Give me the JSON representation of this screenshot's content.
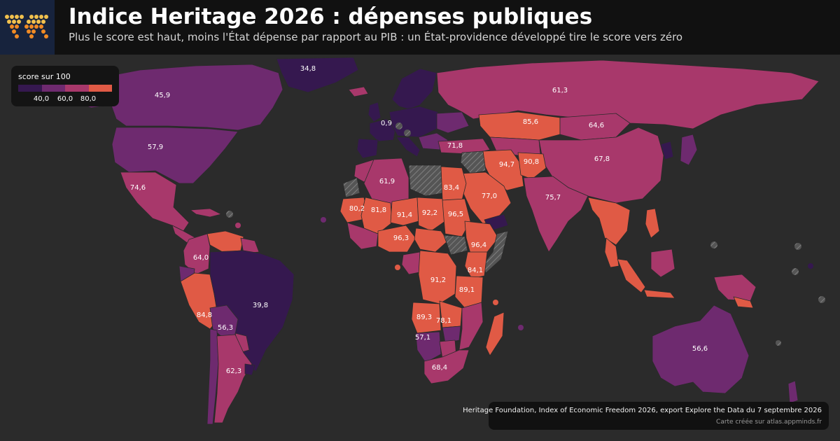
{
  "header": {
    "title": "Indice Heritage 2026 : dépenses publiques",
    "subtitle": "Plus le score est haut, moins l'État dépense par rapport au PIB : un État-providence développé tire le score vers zéro"
  },
  "legend": {
    "title": "score sur 100",
    "ticks": [
      "40,0",
      "60,0",
      "80,0"
    ],
    "colors": [
      "#35184f",
      "#6e2a6f",
      "#a8386b",
      "#e05a45"
    ]
  },
  "source": {
    "line1": "Heritage Foundation, Index of Economic Freedom 2026, export Explore the Data du 7 septembre 2026",
    "line2": "Carte créée sur atlas.appminds.fr"
  },
  "colors": {
    "background": "#2b2b2b",
    "header": "#111111",
    "no_data": "#5a5a5a",
    "low": "#35184f",
    "mid_low": "#6e2a6f",
    "mid_high": "#a8386b",
    "high": "#e05a45"
  },
  "map_labels": [
    {
      "id": "greenland",
      "value": "34,8"
    },
    {
      "id": "canada",
      "value": "45,9"
    },
    {
      "id": "usa",
      "value": "57,9"
    },
    {
      "id": "mexico",
      "value": "74,6"
    },
    {
      "id": "colombia",
      "value": "64,0"
    },
    {
      "id": "brazil",
      "value": "39,8"
    },
    {
      "id": "peru",
      "value": "84,8"
    },
    {
      "id": "bolivia",
      "value": "56,3"
    },
    {
      "id": "argentina",
      "value": "62,3"
    },
    {
      "id": "france",
      "value": "0,9"
    },
    {
      "id": "russia",
      "value": "61,3"
    },
    {
      "id": "kazakhstan",
      "value": "85,6"
    },
    {
      "id": "mongolia",
      "value": "64,6"
    },
    {
      "id": "china",
      "value": "67,8"
    },
    {
      "id": "turkey",
      "value": "71,8"
    },
    {
      "id": "iran",
      "value": "94,7"
    },
    {
      "id": "afghanistan",
      "value": "90,8"
    },
    {
      "id": "india",
      "value": "75,7"
    },
    {
      "id": "saudi-arabia",
      "value": "77,0"
    },
    {
      "id": "algeria",
      "value": "61,9"
    },
    {
      "id": "egypt",
      "value": "83,4"
    },
    {
      "id": "mauritania",
      "value": "80,2"
    },
    {
      "id": "mali",
      "value": "81,8"
    },
    {
      "id": "niger",
      "value": "91,4"
    },
    {
      "id": "chad",
      "value": "92,2"
    },
    {
      "id": "sudan",
      "value": "96,5"
    },
    {
      "id": "nigeria",
      "value": "96,3"
    },
    {
      "id": "ethiopia",
      "value": "96,4"
    },
    {
      "id": "kenya",
      "value": "84,1"
    },
    {
      "id": "dr-congo",
      "value": "91,2"
    },
    {
      "id": "tanzania",
      "value": "89,1"
    },
    {
      "id": "angola",
      "value": "89,3"
    },
    {
      "id": "zambia",
      "value": "78,1"
    },
    {
      "id": "namibia",
      "value": "57,1"
    },
    {
      "id": "south-africa",
      "value": "68,4"
    },
    {
      "id": "australia",
      "value": "56,6"
    }
  ]
}
